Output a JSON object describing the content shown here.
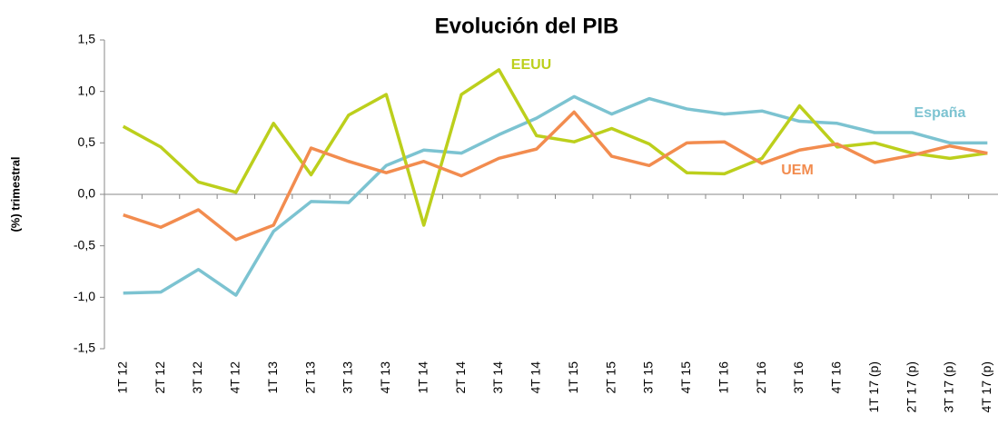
{
  "chart_data": {
    "type": "line",
    "title": "Evolución del PIB",
    "y_label": "(%) trimestral",
    "categories": [
      "1T 12",
      "2T 12",
      "3T 12",
      "4T 12",
      "1T 13",
      "2T 13",
      "3T 13",
      "4T 13",
      "1T 14",
      "2T 14",
      "3T 14",
      "4T 14",
      "1T 15",
      "2T 15",
      "3T 15",
      "4T 15",
      "1T 16",
      "2T 16",
      "3T 16",
      "4T 16",
      "1T 17 (p)",
      "2T 17 (p)",
      "3T 17 (p)",
      "4T 17 (p)"
    ],
    "series": [
      {
        "name": "España",
        "color": "#7cc3d1",
        "values": [
          -0.96,
          -0.95,
          -0.73,
          -0.98,
          -0.36,
          -0.07,
          -0.08,
          0.28,
          0.43,
          0.4,
          0.58,
          0.74,
          0.95,
          0.78,
          0.93,
          0.83,
          0.78,
          0.81,
          0.71,
          0.69,
          0.6,
          0.6,
          0.5,
          0.5
        ]
      },
      {
        "name": "EEUU",
        "color": "#bccf1c",
        "values": [
          0.66,
          0.46,
          0.12,
          0.02,
          0.69,
          0.19,
          0.77,
          0.97,
          -0.3,
          0.97,
          1.21,
          0.57,
          0.51,
          0.64,
          0.49,
          0.21,
          0.2,
          0.35,
          0.86,
          0.46,
          0.5,
          0.4,
          0.35,
          0.4
        ]
      },
      {
        "name": "UEM",
        "color": "#f28c4f",
        "values": [
          -0.2,
          -0.32,
          -0.15,
          -0.44,
          -0.3,
          0.45,
          0.32,
          0.21,
          0.32,
          0.18,
          0.35,
          0.44,
          0.8,
          0.37,
          0.28,
          0.5,
          0.51,
          0.3,
          0.43,
          0.49,
          0.31,
          0.38,
          0.47,
          0.4
        ]
      }
    ],
    "ylim": [
      -1.5,
      1.5
    ],
    "yticks": [
      {
        "value": -1.5,
        "label": "-1,5"
      },
      {
        "value": -1,
        "label": "-1,0"
      },
      {
        "value": -0.5,
        "label": "-0,5"
      },
      {
        "value": 0,
        "label": "0,0"
      },
      {
        "value": 0.5,
        "label": "0,5"
      },
      {
        "value": 1,
        "label": "1,0"
      },
      {
        "value": 1.5,
        "label": "1,5"
      }
    ],
    "grid": false
  }
}
